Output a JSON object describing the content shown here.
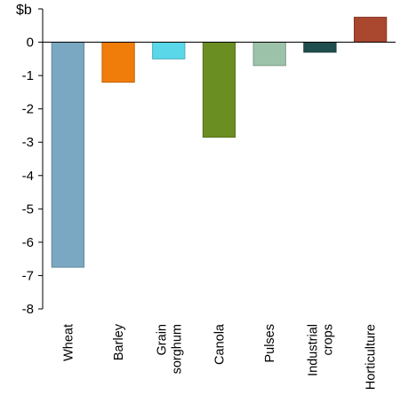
{
  "chart_data": {
    "type": "bar",
    "y_unit_label": "$b",
    "categories": [
      [
        "Wheat"
      ],
      [
        "Barley"
      ],
      [
        "Grain",
        "sorghum"
      ],
      [
        "Canola"
      ],
      [
        "Pulses"
      ],
      [
        "Industrial",
        "crops"
      ],
      [
        "Horticulture"
      ]
    ],
    "values": [
      -6.75,
      -1.2,
      -0.5,
      -2.85,
      -0.7,
      -0.3,
      0.75
    ],
    "colors": [
      "#7aa8c2",
      "#f07c0a",
      "#5ad8ea",
      "#6b8e23",
      "#9cc3aa",
      "#1f4e4e",
      "#a9472f"
    ],
    "ylim": [
      -8,
      1
    ],
    "yticks": [
      0,
      -1,
      -2,
      -3,
      -4,
      -5,
      -6,
      -7,
      -8
    ],
    "grid": false,
    "legend": "none"
  }
}
